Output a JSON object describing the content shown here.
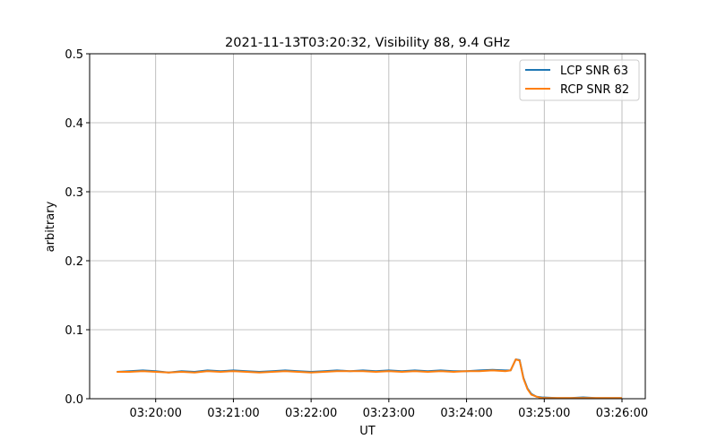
{
  "chart_data": {
    "type": "line",
    "title": "2021-11-13T03:20:32, Visibility 88, 9.4 GHz",
    "xlabel": "UT",
    "ylabel": "arbitrary",
    "xlim": [
      "03:19:09",
      "03:26:18"
    ],
    "ylim": [
      0,
      0.5
    ],
    "grid": true,
    "legend_placement": "upper right",
    "xticks": [
      "03:20:00",
      "03:21:00",
      "03:22:00",
      "03:23:00",
      "03:24:00",
      "03:25:00",
      "03:26:00"
    ],
    "yticks": [
      "0.0",
      "0.1",
      "0.2",
      "0.3",
      "0.4",
      "0.5"
    ],
    "x": [
      "03:19:30",
      "03:19:40",
      "03:19:50",
      "03:20:00",
      "03:20:10",
      "03:20:20",
      "03:20:30",
      "03:20:40",
      "03:20:50",
      "03:21:00",
      "03:21:10",
      "03:21:20",
      "03:21:30",
      "03:21:40",
      "03:21:50",
      "03:22:00",
      "03:22:10",
      "03:22:20",
      "03:22:30",
      "03:22:40",
      "03:22:50",
      "03:23:00",
      "03:23:10",
      "03:23:20",
      "03:23:30",
      "03:23:40",
      "03:23:50",
      "03:24:00",
      "03:24:10",
      "03:24:20",
      "03:24:30",
      "03:24:34",
      "03:24:38",
      "03:24:41",
      "03:24:44",
      "03:24:47",
      "03:24:50",
      "03:24:54",
      "03:24:58",
      "03:25:10",
      "03:25:20",
      "03:25:30",
      "03:25:40",
      "03:25:50",
      "03:26:00"
    ],
    "series": [
      {
        "name": "LCP SNR 63",
        "color": "#1f77b4",
        "values": [
          0.039,
          0.04,
          0.041,
          0.04,
          0.038,
          0.04,
          0.039,
          0.041,
          0.04,
          0.041,
          0.04,
          0.039,
          0.04,
          0.041,
          0.04,
          0.039,
          0.04,
          0.041,
          0.04,
          0.041,
          0.04,
          0.041,
          0.04,
          0.041,
          0.04,
          0.041,
          0.04,
          0.04,
          0.041,
          0.042,
          0.041,
          0.041,
          0.057,
          0.056,
          0.03,
          0.015,
          0.007,
          0.003,
          0.002,
          0.001,
          0.001,
          0.002,
          0.001,
          0.001,
          0.001
        ]
      },
      {
        "name": "RCP SNR 82",
        "color": "#ff7f0e",
        "values": [
          0.039,
          0.039,
          0.04,
          0.039,
          0.038,
          0.039,
          0.038,
          0.04,
          0.039,
          0.04,
          0.039,
          0.038,
          0.039,
          0.04,
          0.039,
          0.038,
          0.039,
          0.04,
          0.04,
          0.04,
          0.039,
          0.04,
          0.039,
          0.04,
          0.039,
          0.04,
          0.039,
          0.04,
          0.04,
          0.041,
          0.04,
          0.041,
          0.057,
          0.055,
          0.029,
          0.014,
          0.006,
          0.003,
          0.001,
          0.001,
          0.001,
          0.001,
          0.001,
          0.001,
          0.001
        ]
      }
    ]
  }
}
